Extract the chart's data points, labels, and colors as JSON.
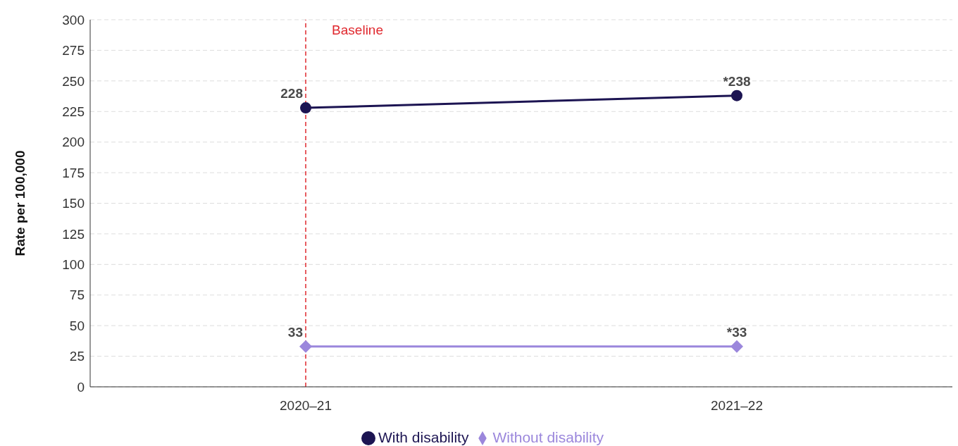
{
  "chart_data": {
    "type": "line",
    "ylabel": "Rate per 100,000",
    "categories": [
      "2020–21",
      "2021–22"
    ],
    "series": [
      {
        "name": "With disability",
        "color": "#1c1452",
        "values": [
          228,
          238
        ],
        "marker": "circle",
        "value_labels": [
          "228",
          "*238"
        ]
      },
      {
        "name": "Without disability",
        "color": "#9b87dc",
        "values": [
          33,
          33
        ],
        "marker": "diamond",
        "value_labels": [
          "33",
          "*33"
        ]
      }
    ],
    "ylim": [
      0,
      300
    ],
    "yticks": [
      0,
      25,
      50,
      75,
      100,
      125,
      150,
      175,
      200,
      225,
      250,
      275,
      300
    ],
    "grid": "y",
    "legend": "bottom",
    "ref_lines": [
      {
        "axis": "x",
        "value": "2020–21",
        "label": "Baseline",
        "color": "#e0282e",
        "line_style": "dashed"
      }
    ]
  }
}
